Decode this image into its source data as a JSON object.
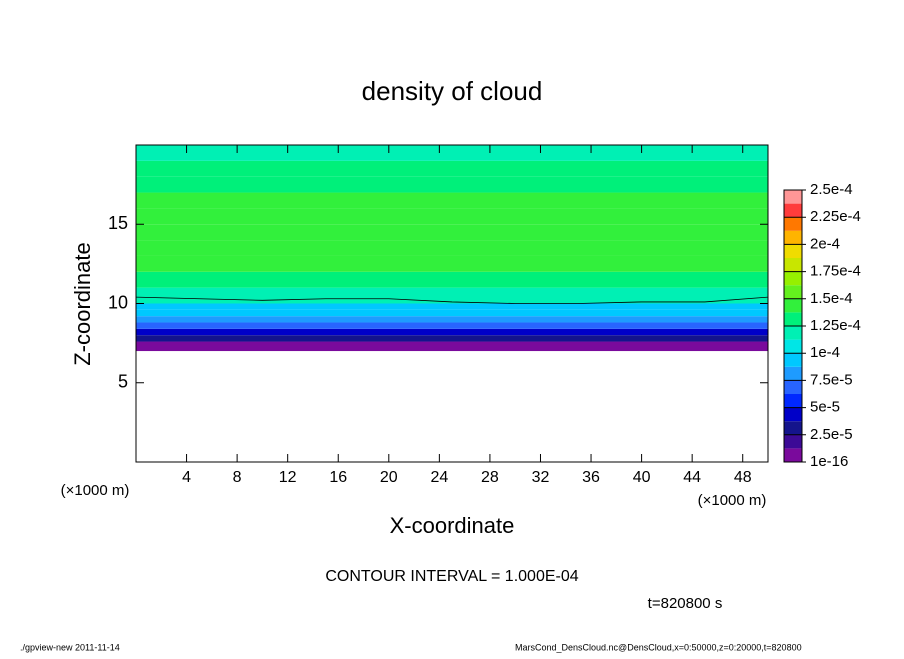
{
  "chart_data": {
    "type": "contour",
    "title": "density of cloud",
    "xlabel": "X-coordinate",
    "ylabel": "Z-coordinate",
    "xunit_left": "(×1000 m)",
    "xunit_right": "(×1000 m)",
    "xlim": [
      0,
      50
    ],
    "ylim": [
      0,
      20
    ],
    "xticks": [
      4,
      8,
      12,
      16,
      20,
      24,
      28,
      32,
      36,
      40,
      44,
      48
    ],
    "yticks": [
      5,
      10,
      15
    ],
    "z_edges": [
      7,
      7.6,
      8.0,
      8.4,
      8.8,
      9.2,
      9.6,
      10,
      11,
      12,
      13,
      14,
      15,
      16,
      17,
      18,
      19,
      20
    ],
    "values": [
      1e-05,
      3e-05,
      5e-05,
      7e-05,
      8e-05,
      9e-05,
      0.0001,
      0.00012,
      0.00013,
      0.00014,
      0.00015,
      0.00015,
      0.00014,
      0.00014,
      0.00013,
      0.00013,
      0.00012
    ],
    "contour": {
      "level": 0.0001,
      "x": [
        0,
        5,
        10,
        15,
        20,
        25,
        30,
        35,
        40,
        45,
        50
      ],
      "z": [
        10.4,
        10.3,
        10.2,
        10.3,
        10.3,
        10.1,
        10.0,
        10.0,
        10.1,
        10.1,
        10.4
      ]
    },
    "colorbar_ticks": [
      1e-16,
      {
        "value": 2.5e-05,
        "label": "2.5e-5"
      },
      {
        "value": 5e-05,
        "label": "5e-5"
      },
      {
        "value": 7.5e-05,
        "label": "7.5e-5"
      },
      {
        "value": 0.0001,
        "label": "1e-4"
      },
      {
        "value": 0.000125,
        "label": "1.25e-4"
      },
      {
        "value": 0.00015,
        "label": "1.5e-4"
      },
      {
        "value": 0.000175,
        "label": "1.75e-4"
      },
      {
        "value": 0.0002,
        "label": "2e-4"
      },
      {
        "value": 0.000225,
        "label": "2.25e-4"
      },
      {
        "value": 0.00025,
        "label": "2.5e-4"
      }
    ],
    "colors": [
      "#7a0a9c",
      "#3c0a96",
      "#14148c",
      "#0000c8",
      "#0028ff",
      "#2864ff",
      "#1e9bff",
      "#00c8ff",
      "#00e6e6",
      "#00f0b4",
      "#00f07a",
      "#32f03c",
      "#64f01e",
      "#96f000",
      "#c8e600",
      "#f0dc00",
      "#ffb400",
      "#ff7800",
      "#ff3c3c",
      "#ff9696"
    ],
    "contour_interval": "CONTOUR INTERVAL = 1.000E-04",
    "time_label": "t=820800 s",
    "footer_left": "./gpview-new  2011-11-14",
    "footer_right": "MarsCond_DensCloud.nc@DensCloud,x=0:50000,z=0:20000,t=820800"
  }
}
